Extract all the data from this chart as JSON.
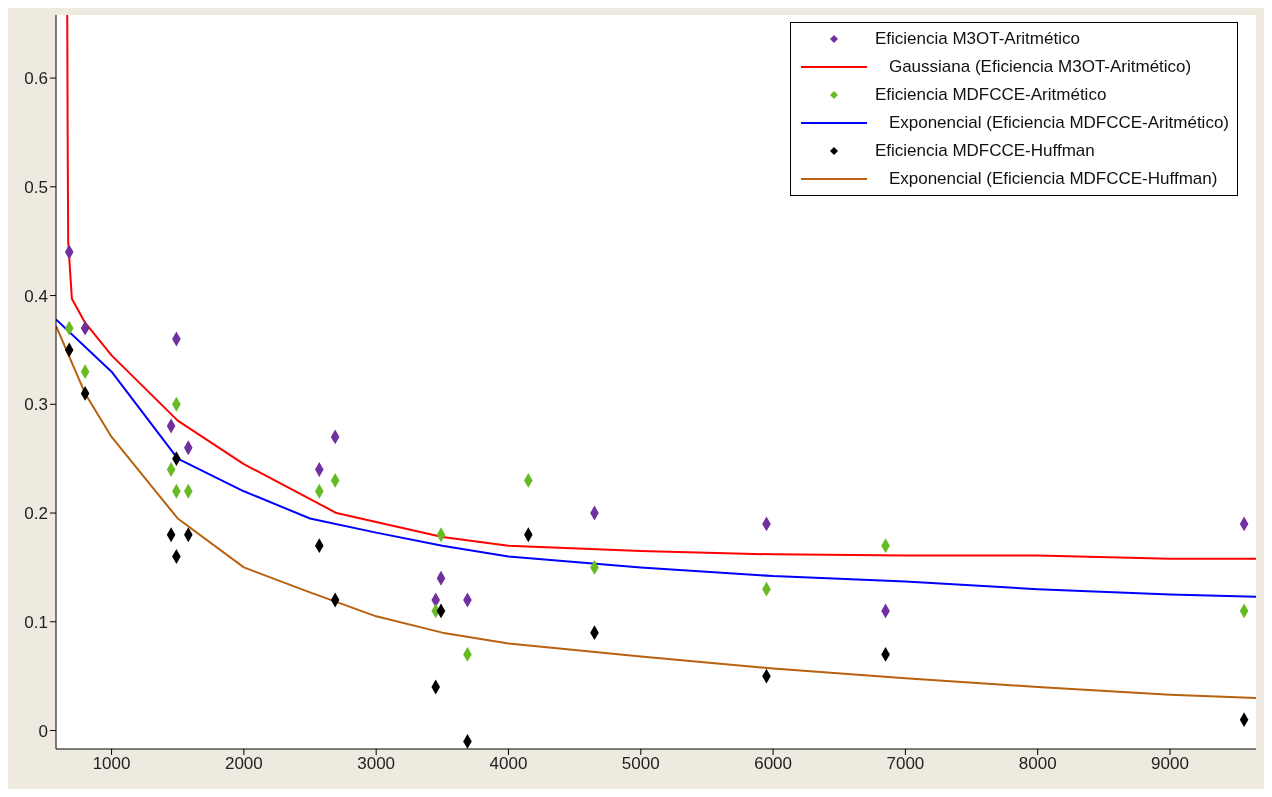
{
  "chart_data": {
    "type": "scatter",
    "marker": "diamond",
    "legend": "top right",
    "grid": false,
    "xlim": [
      580,
      9650
    ],
    "xticks": [
      1000,
      2000,
      3000,
      4000,
      5000,
      6000,
      7000,
      8000,
      9000
    ],
    "ylim": [
      -0.017,
      0.658
    ],
    "yticks": [
      0,
      0.1,
      0.2,
      0.3,
      0.4,
      0.5,
      0.6
    ],
    "series": [
      {
        "name": "Eficiencia M3OT-Aritmético",
        "color": "#7030a0",
        "x": [
          680,
          800,
          1450,
          1490,
          1580,
          2570,
          2690,
          3450,
          3490,
          3690,
          4650,
          5950,
          6850,
          9560
        ],
        "values": [
          0.44,
          0.37,
          0.28,
          0.36,
          0.26,
          0.24,
          0.27,
          0.12,
          0.14,
          0.12,
          0.2,
          0.19,
          0.11,
          0.19
        ]
      },
      {
        "name": "Gaussiana (Eficiencia M3OT-Aritmético)",
        "type": "line",
        "marker": "none",
        "color": "#ff0000",
        "x": [
          665,
          668,
          672,
          700,
          800,
          1000,
          1500,
          2000,
          2700,
          3500,
          4000,
          5000,
          6000,
          7000,
          8000,
          9000,
          9650
        ],
        "values": [
          0.658,
          0.55,
          0.45,
          0.397,
          0.375,
          0.345,
          0.285,
          0.245,
          0.2,
          0.178,
          0.17,
          0.165,
          0.162,
          0.161,
          0.161,
          0.158,
          0.158
        ]
      },
      {
        "name": "Eficiencia MDFCCE-Aritmético",
        "color": "#66bb22",
        "x": [
          680,
          800,
          1450,
          1490,
          1490,
          1580,
          2570,
          2690,
          3450,
          3490,
          3690,
          4150,
          4650,
          5950,
          6850,
          9560
        ],
        "values": [
          0.37,
          0.33,
          0.24,
          0.3,
          0.22,
          0.22,
          0.22,
          0.23,
          0.11,
          0.18,
          0.07,
          0.23,
          0.15,
          0.13,
          0.17,
          0.11
        ]
      },
      {
        "name": "Exponencial (Eficiencia MDFCCE-Aritmético)",
        "type": "line",
        "marker": "none",
        "color": "#0000ff",
        "x": [
          580,
          1000,
          1500,
          2000,
          2500,
          3000,
          3500,
          4000,
          5000,
          6000,
          7000,
          8000,
          9000,
          9650
        ],
        "values": [
          0.378,
          0.33,
          0.25,
          0.22,
          0.195,
          0.182,
          0.17,
          0.16,
          0.15,
          0.142,
          0.137,
          0.13,
          0.125,
          0.123
        ]
      },
      {
        "name": "Eficiencia MDFCCE-Huffman",
        "color": "#000000",
        "x": [
          680,
          800,
          1450,
          1490,
          1490,
          1580,
          2570,
          2690,
          3450,
          3490,
          3690,
          4150,
          4650,
          5950,
          6850,
          9560
        ],
        "values": [
          0.35,
          0.31,
          0.18,
          0.16,
          0.25,
          0.18,
          0.17,
          0.12,
          0.04,
          0.11,
          -0.01,
          0.18,
          0.09,
          0.05,
          0.07,
          0.01
        ]
      },
      {
        "name": "Exponencial (Eficiencia MDFCCE-Huffman)",
        "type": "line",
        "marker": "none",
        "color": "#b8610f",
        "x": [
          580,
          800,
          1000,
          1500,
          2000,
          2500,
          3000,
          3500,
          4000,
          5000,
          6000,
          7000,
          8000,
          9000,
          9650
        ],
        "values": [
          0.372,
          0.31,
          0.27,
          0.195,
          0.15,
          0.127,
          0.105,
          0.09,
          0.08,
          0.068,
          0.057,
          0.048,
          0.04,
          0.033,
          0.03
        ]
      }
    ]
  }
}
